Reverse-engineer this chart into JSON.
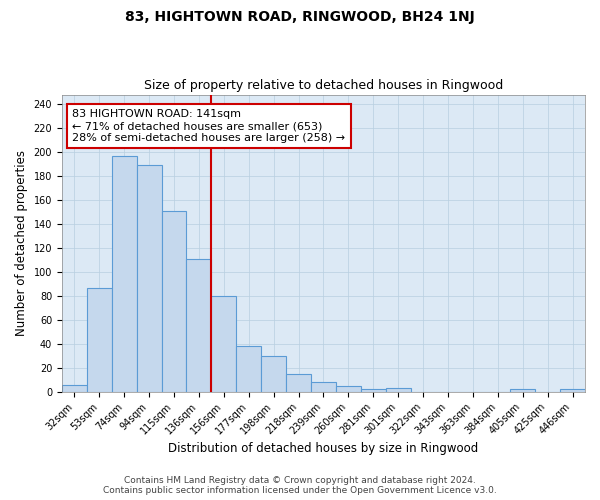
{
  "title": "83, HIGHTOWN ROAD, RINGWOOD, BH24 1NJ",
  "subtitle": "Size of property relative to detached houses in Ringwood",
  "xlabel": "Distribution of detached houses by size in Ringwood",
  "ylabel": "Number of detached properties",
  "categories": [
    "32sqm",
    "53sqm",
    "74sqm",
    "94sqm",
    "115sqm",
    "136sqm",
    "156sqm",
    "177sqm",
    "198sqm",
    "218sqm",
    "239sqm",
    "260sqm",
    "281sqm",
    "301sqm",
    "322sqm",
    "343sqm",
    "363sqm",
    "384sqm",
    "405sqm",
    "425sqm",
    "446sqm"
  ],
  "values": [
    6,
    87,
    197,
    189,
    151,
    111,
    80,
    38,
    30,
    15,
    8,
    5,
    2,
    3,
    0,
    0,
    0,
    0,
    2,
    0,
    2
  ],
  "bar_color": "#c5d8ed",
  "bar_edge_color": "#5b9bd5",
  "property_line_x": 5.5,
  "annotation_line1": "83 HIGHTOWN ROAD: 141sqm",
  "annotation_line2": "← 71% of detached houses are smaller (653)",
  "annotation_line3": "28% of semi-detached houses are larger (258) →",
  "annotation_box_color": "#ffffff",
  "annotation_box_edge_color": "#cc0000",
  "red_line_color": "#cc0000",
  "ylim": [
    0,
    248
  ],
  "yticks": [
    0,
    20,
    40,
    60,
    80,
    100,
    120,
    140,
    160,
    180,
    200,
    220,
    240
  ],
  "footer_line1": "Contains HM Land Registry data © Crown copyright and database right 2024.",
  "footer_line2": "Contains public sector information licensed under the Open Government Licence v3.0.",
  "bg_color": "#ffffff",
  "plot_bg_color": "#dce9f5",
  "grid_color": "#b8cfe0",
  "title_fontsize": 10,
  "subtitle_fontsize": 9,
  "axis_label_fontsize": 8.5,
  "tick_fontsize": 7,
  "annotation_fontsize": 8,
  "footer_fontsize": 6.5
}
